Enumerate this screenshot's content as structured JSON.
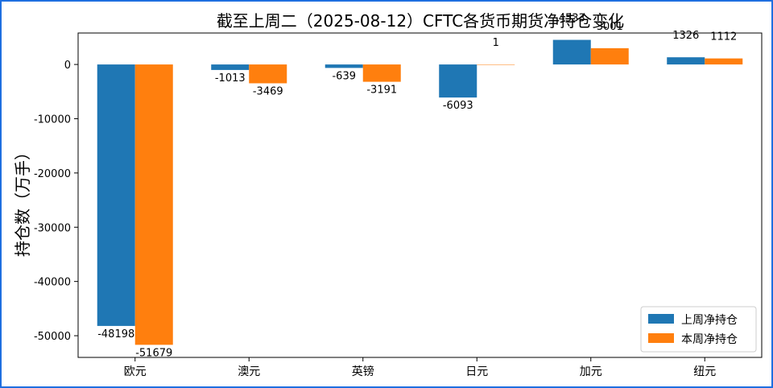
{
  "chart_data": {
    "type": "bar",
    "title": "截至上周二（2025-08-12）CFTC各货币期货净持仓变化",
    "xlabel": "",
    "ylabel": "持仓数（万手）",
    "categories": [
      "欧元",
      "澳元",
      "英镑",
      "日元",
      "加元",
      "纽元"
    ],
    "series": [
      {
        "name": "上周净持仓",
        "values": [
          -48198,
          -1013,
          -639,
          -6093,
          4533,
          1326
        ],
        "color": "#1f77b4"
      },
      {
        "name": "本周净持仓",
        "values": [
          -51679,
          -3469,
          -3191,
          1,
          3001,
          1112
        ],
        "color": "#ff7f0e"
      }
    ],
    "data_labels": [
      [
        "-48198",
        "-1013",
        "-639",
        "-6093",
        "4533",
        "1326"
      ],
      [
        "-51679",
        "-3469",
        "-3191",
        "1",
        "3001",
        "1112"
      ]
    ],
    "ylim": [
      -54000,
      5800
    ],
    "yticks": [
      0,
      -10000,
      -20000,
      -30000,
      -40000,
      -50000
    ],
    "grid": false,
    "legend_position": "lower-right"
  }
}
